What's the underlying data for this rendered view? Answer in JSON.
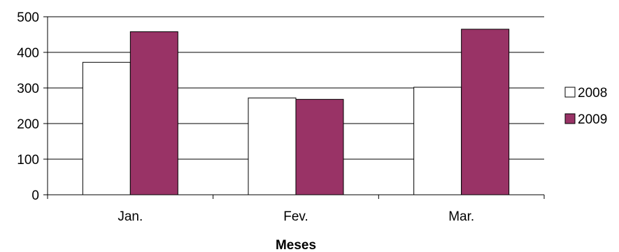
{
  "chart_data": {
    "type": "bar",
    "title": "",
    "xlabel": "Meses",
    "ylabel": "",
    "categories": [
      "Jan.",
      "Fev.",
      "Mar."
    ],
    "series": [
      {
        "name": "2008",
        "values": [
          372,
          272,
          302
        ],
        "color": "#ffffff"
      },
      {
        "name": "2009",
        "values": [
          458,
          268,
          465
        ],
        "color": "#993366"
      }
    ],
    "ylim": [
      0,
      500
    ],
    "yticks": [
      "0",
      "100",
      "200",
      "300",
      "400",
      "500"
    ],
    "grid": true,
    "legend": "right"
  }
}
